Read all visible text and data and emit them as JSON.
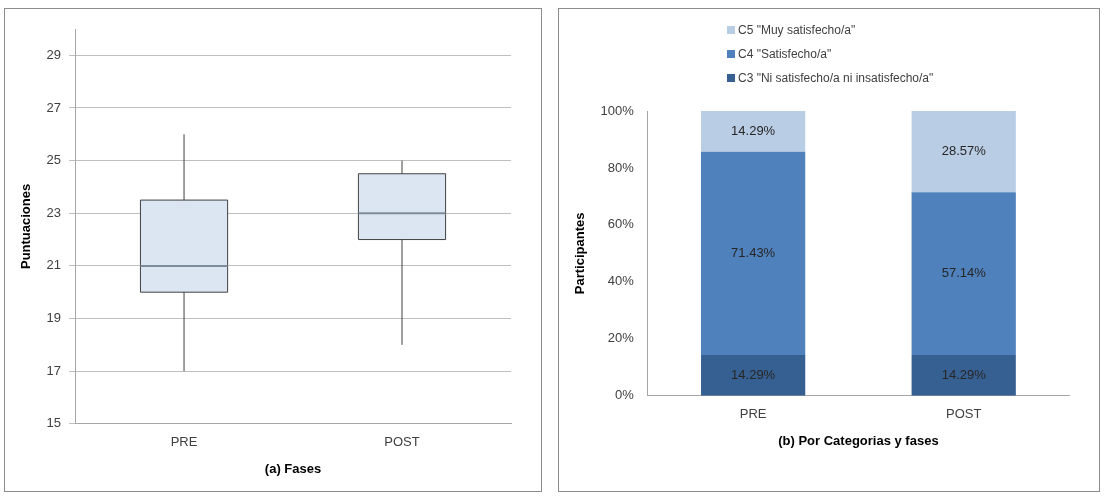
{
  "chart_data": [
    {
      "type": "box",
      "xlabel": "(a) Fases",
      "ylabel": "Puntuaciones",
      "categories": [
        "PRE",
        "POST"
      ],
      "series": [
        {
          "color": "#dce6f2",
          "boxes": [
            {
              "low": 17,
              "q1": 20,
              "median": 21,
              "q3": 23.5,
              "high": 26
            },
            {
              "low": 18,
              "q1": 22,
              "median": 23,
              "q3": 24.5,
              "high": 25
            }
          ]
        }
      ],
      "ylim": [
        15,
        30
      ],
      "yticks": [
        15,
        17,
        19,
        21,
        23,
        25,
        27,
        29
      ],
      "grid": "y",
      "legend": false
    },
    {
      "type": "bar",
      "stacked": true,
      "xlabel": "(b) Por Categorias y fases",
      "ylabel": "Participantes",
      "categories": [
        "PRE",
        "POST"
      ],
      "series": [
        {
          "name": "C3 \"Ni satisfecho/a ni insatisfecho/a\"",
          "color": "#376092",
          "values": [
            14.29,
            14.29
          ],
          "value_labels": [
            "14.29%",
            "14.29%"
          ]
        },
        {
          "name": "C4 \"Satisfecho/a\"",
          "color": "#4f81bd",
          "values": [
            71.43,
            57.14
          ],
          "value_labels": [
            "71.43%",
            "57.14%"
          ]
        },
        {
          "name": "C5 \"Muy satisfecho/a\"",
          "color": "#b9cde5",
          "values": [
            14.29,
            28.57
          ],
          "value_labels": [
            "14.29%",
            "28.57%"
          ]
        }
      ],
      "ylim": [
        0,
        100
      ],
      "yticks": [
        {
          "value": 0,
          "label": "0%"
        },
        {
          "value": 20,
          "label": "20%"
        },
        {
          "value": 40,
          "label": "40%"
        },
        {
          "value": 60,
          "label": "60%"
        },
        {
          "value": 80,
          "label": "80%"
        },
        {
          "value": 100,
          "label": "100%"
        }
      ],
      "grid": false,
      "legend": "top"
    }
  ]
}
